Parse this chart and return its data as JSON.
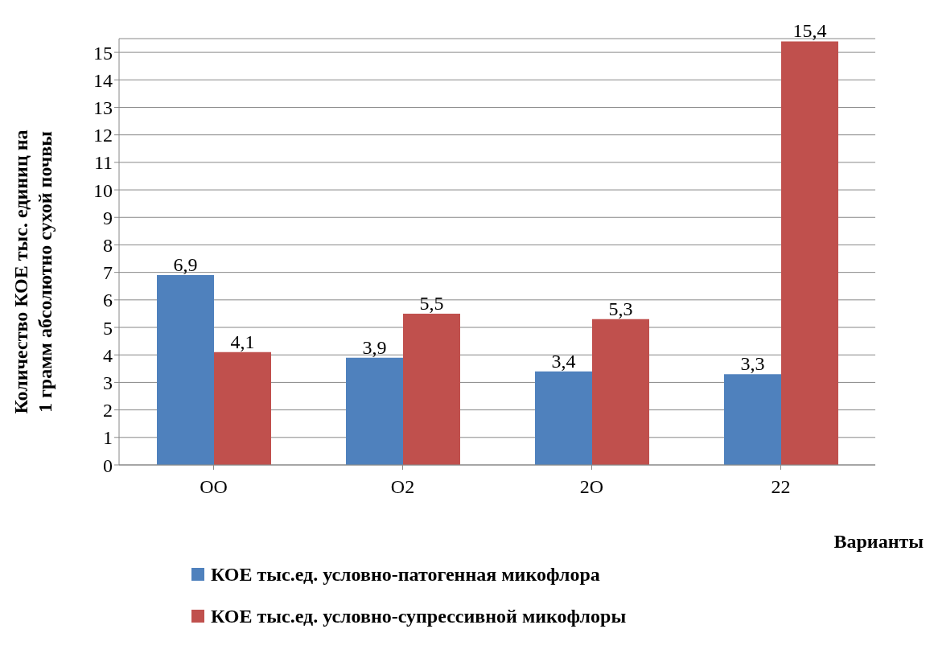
{
  "chart_data": {
    "type": "bar",
    "xlabel": "Варианты",
    "ylabel": "Количество КОЕ тыс. единиц на 1 грамм абсолютно сухой почвы",
    "categories": [
      "OO",
      "O2",
      "2O",
      "22"
    ],
    "series": [
      {
        "name": "КОЕ тыс.ед. условно-патогенная микофлора",
        "color": "#4f81bd",
        "values": [
          6.9,
          3.9,
          3.4,
          3.3
        ],
        "value_labels": [
          "6,9",
          "3,9",
          "3,4",
          "3,3"
        ]
      },
      {
        "name": "КОЕ тыс.ед. условно-супрессивной микофлоры",
        "color": "#c0504d",
        "values": [
          4.1,
          5.5,
          5.3,
          15.4
        ],
        "value_labels": [
          "4,1",
          "5,5",
          "5,3",
          "15,4"
        ]
      }
    ],
    "ylim": [
      0,
      15.5
    ],
    "yticks": [
      0,
      1,
      2,
      3,
      4,
      5,
      6,
      7,
      8,
      9,
      10,
      11,
      12,
      13,
      14,
      15
    ],
    "grid": "y",
    "legend": "bottom"
  }
}
